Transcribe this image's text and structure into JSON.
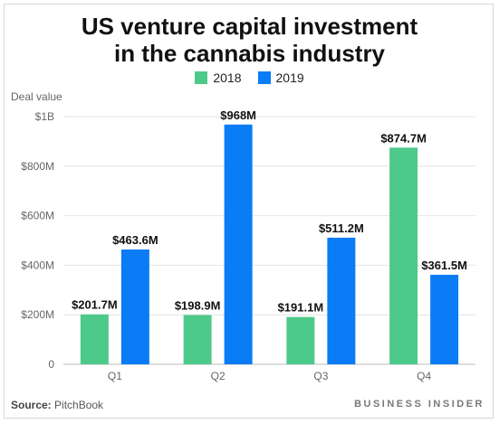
{
  "title_line1": "US venture capital investment",
  "title_line2": "in the cannabis industry",
  "legend": {
    "s2018": "2018",
    "s2019": "2019"
  },
  "ylabel": "Deal value",
  "source_label": "Source:",
  "source_name": "PitchBook",
  "brand": "BUSINESS INSIDER",
  "colors": {
    "s2018": "#4dc98a",
    "s2019": "#0a7cf5",
    "grid": "#e4e4e4",
    "tick": "#666666",
    "label": "#111111"
  },
  "chart_data": {
    "type": "bar",
    "title": "US venture capital investment in the cannabis industry",
    "xlabel": "",
    "ylabel": "Deal value",
    "categories": [
      "Q1",
      "Q2",
      "Q3",
      "Q4"
    ],
    "ylim": [
      0,
      1000
    ],
    "yticks": [
      {
        "value": 0,
        "label": "0"
      },
      {
        "value": 200,
        "label": "$200M"
      },
      {
        "value": 400,
        "label": "$400M"
      },
      {
        "value": 600,
        "label": "$600M"
      },
      {
        "value": 800,
        "label": "$800M"
      },
      {
        "value": 1000,
        "label": "$1B"
      }
    ],
    "grid": true,
    "legend_position": "top",
    "series": [
      {
        "name": "2018",
        "values": [
          201.7,
          198.9,
          191.1,
          874.7
        ],
        "labels": [
          "$201.7M",
          "$198.9M",
          "$191.1M",
          "$874.7M"
        ]
      },
      {
        "name": "2019",
        "values": [
          463.6,
          968,
          511.2,
          361.5
        ],
        "labels": [
          "$463.6M",
          "$968M",
          "$511.2M",
          "$361.5M"
        ]
      }
    ]
  }
}
